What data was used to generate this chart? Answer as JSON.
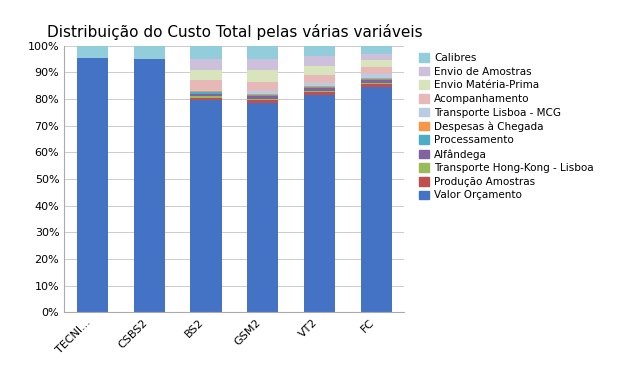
{
  "categories": [
    "TECNI...",
    "CSBS2",
    "BS2",
    "GSM2",
    "VT2",
    "FC"
  ],
  "title": "Distribuição do Custo Total pelas várias variáveis",
  "series": [
    {
      "label": "Valor Orçamento",
      "color": "#4472C4",
      "values": [
        95.5,
        95.0,
        79.5,
        78.5,
        81.5,
        84.5
      ]
    },
    {
      "label": "Produção Amostras",
      "color": "#C0504D",
      "values": [
        0.0,
        0.0,
        1.0,
        1.0,
        1.0,
        1.0
      ]
    },
    {
      "label": "Transporte Hong-Kong - Lisboa",
      "color": "#9BBB59",
      "values": [
        0.0,
        0.0,
        0.5,
        0.5,
        0.5,
        0.5
      ]
    },
    {
      "label": "Alfândega",
      "color": "#8064A2",
      "values": [
        0.0,
        0.0,
        1.0,
        1.0,
        1.0,
        1.0
      ]
    },
    {
      "label": "Processamento",
      "color": "#4BACC6",
      "values": [
        0.0,
        0.0,
        0.5,
        0.5,
        0.5,
        0.5
      ]
    },
    {
      "label": "Despesas à Chegada",
      "color": "#F79646",
      "values": [
        0.0,
        0.0,
        0.5,
        0.5,
        0.5,
        0.5
      ]
    },
    {
      "label": "Transporte Lisboa - MCG",
      "color": "#B8CCE4",
      "values": [
        0.0,
        0.0,
        0.5,
        1.0,
        1.0,
        1.5
      ]
    },
    {
      "label": "Acompanhamento",
      "color": "#E6B9B8",
      "values": [
        0.0,
        0.0,
        3.5,
        3.5,
        3.0,
        2.5
      ]
    },
    {
      "label": "Envio Matéria-Prima",
      "color": "#D7E4BC",
      "values": [
        0.0,
        0.0,
        4.0,
        4.5,
        3.5,
        2.5
      ]
    },
    {
      "label": "Envio de Amostras",
      "color": "#CCC0DA",
      "values": [
        0.0,
        0.0,
        4.0,
        4.0,
        3.5,
        2.5
      ]
    },
    {
      "label": "Calibres",
      "color": "#92CDDC",
      "values": [
        4.5,
        5.0,
        5.0,
        5.0,
        5.0,
        3.5
      ]
    }
  ],
  "ylim": [
    0,
    100
  ],
  "ytick_labels": [
    "0%",
    "10%",
    "20%",
    "30%",
    "40%",
    "50%",
    "60%",
    "70%",
    "80%",
    "90%",
    "100%"
  ],
  "ytick_values": [
    0,
    10,
    20,
    30,
    40,
    50,
    60,
    70,
    80,
    90,
    100
  ],
  "background_color": "#FFFFFF",
  "title_fontsize": 11,
  "legend_fontsize": 7.5,
  "tick_fontsize": 8
}
